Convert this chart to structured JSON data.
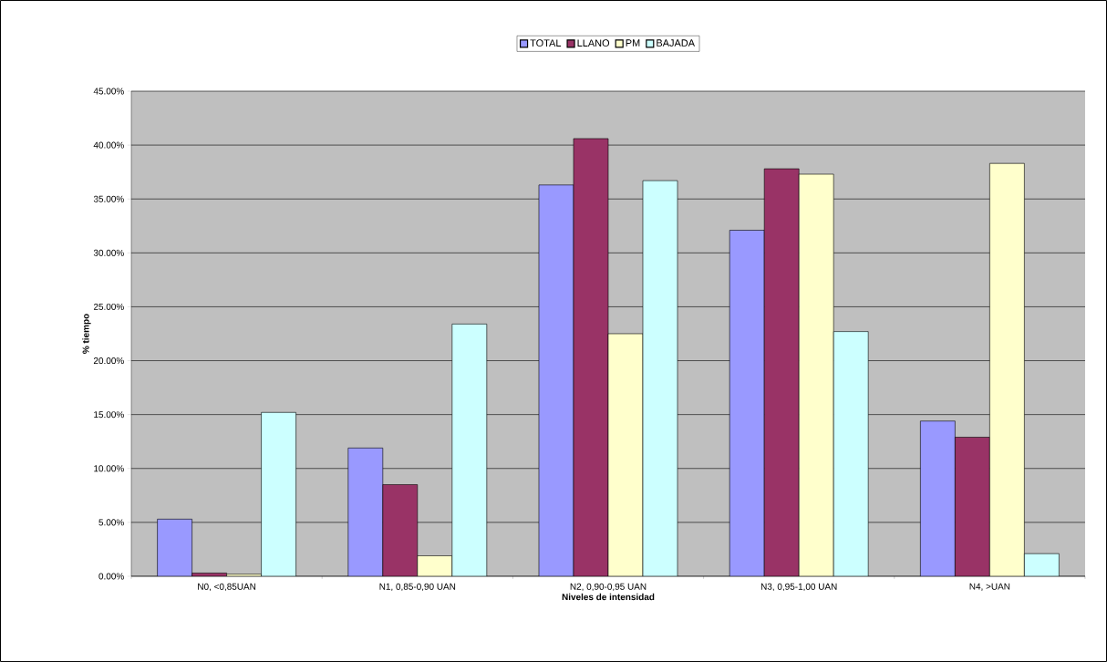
{
  "chart_data": {
    "type": "bar",
    "xlabel": "Niveles de intensidad",
    "ylabel": "% tiempo",
    "categories": [
      "N0, <0,85UAN",
      "N1, 0,85-0,90 UAN",
      "N2, 0,90-0,95 UAN",
      "N3, 0,95-1,00 UAN",
      "N4, >UAN"
    ],
    "series": [
      {
        "name": "TOTAL",
        "color": "#9999ff",
        "values": [
          5.3,
          11.9,
          36.3,
          32.1,
          14.4
        ]
      },
      {
        "name": "LLANO",
        "color": "#993366",
        "values": [
          0.3,
          8.5,
          40.6,
          37.8,
          12.9
        ]
      },
      {
        "name": "PM",
        "color": "#ffffcc",
        "values": [
          0.2,
          1.9,
          22.5,
          37.3,
          38.3
        ]
      },
      {
        "name": "BAJADA",
        "color": "#ccffff",
        "values": [
          15.2,
          23.4,
          36.7,
          22.7,
          2.1
        ]
      }
    ],
    "ylim": [
      0,
      45
    ],
    "yticks": [
      {
        "value": 0,
        "label": "0.00%"
      },
      {
        "value": 5,
        "label": "5.00%"
      },
      {
        "value": 10,
        "label": "10.00%"
      },
      {
        "value": 15,
        "label": "15.00%"
      },
      {
        "value": 20,
        "label": "20.00%"
      },
      {
        "value": 25,
        "label": "25.00%"
      },
      {
        "value": 30,
        "label": "30.00%"
      },
      {
        "value": 35,
        "label": "35.00%"
      },
      {
        "value": 40,
        "label": "40.00%"
      },
      {
        "value": 45,
        "label": "45.00%"
      }
    ],
    "grid": "y",
    "legend": "top"
  }
}
